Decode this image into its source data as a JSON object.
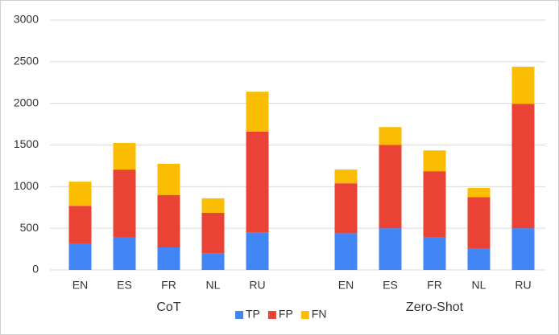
{
  "chart_data": {
    "type": "stacked_bar",
    "categories": [
      "EN",
      "ES",
      "FR",
      "NL",
      "RU",
      null,
      "EN",
      "ES",
      "FR",
      "NL",
      "RU"
    ],
    "groups": [
      "CoT",
      "Zero-Shot"
    ],
    "series": [
      {
        "name": "TP",
        "color": "#4285f4",
        "values": [
          310,
          390,
          270,
          200,
          450,
          null,
          440,
          500,
          395,
          260,
          500
        ]
      },
      {
        "name": "FP",
        "color": "#ea4335",
        "values": [
          460,
          815,
          630,
          485,
          1210,
          null,
          600,
          1000,
          790,
          615,
          1495
        ]
      },
      {
        "name": "FN",
        "color": "#fbbc04",
        "values": [
          290,
          320,
          375,
          175,
          480,
          null,
          165,
          215,
          250,
          110,
          445
        ]
      }
    ],
    "ylim": [
      0,
      3000
    ],
    "yticks": [
      0,
      500,
      1000,
      1500,
      2000,
      2500,
      3000
    ],
    "grid": true,
    "legend": "bottom"
  }
}
